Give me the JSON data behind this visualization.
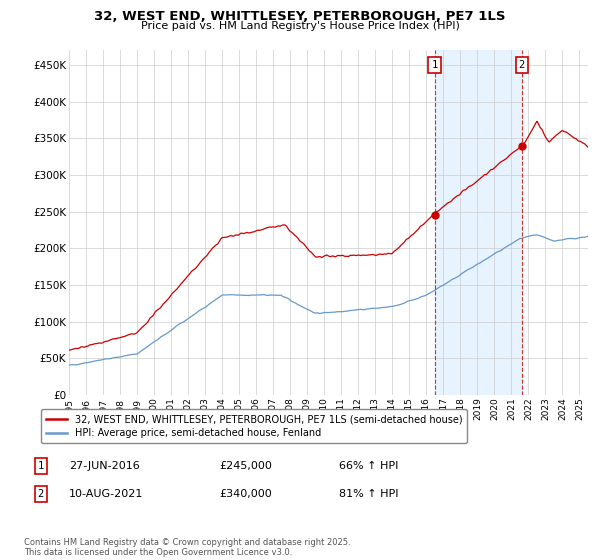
{
  "title_line1": "32, WEST END, WHITTLESEY, PETERBOROUGH, PE7 1LS",
  "title_line2": "Price paid vs. HM Land Registry's House Price Index (HPI)",
  "ylabel_ticks": [
    "£0",
    "£50K",
    "£100K",
    "£150K",
    "£200K",
    "£250K",
    "£300K",
    "£350K",
    "£400K",
    "£450K"
  ],
  "ytick_values": [
    0,
    50000,
    100000,
    150000,
    200000,
    250000,
    300000,
    350000,
    400000,
    450000
  ],
  "ylim": [
    0,
    470000
  ],
  "xlim_start": 1995.0,
  "xlim_end": 2025.5,
  "x_tick_years": [
    1995,
    1996,
    1997,
    1998,
    1999,
    2000,
    2001,
    2002,
    2003,
    2004,
    2005,
    2006,
    2007,
    2008,
    2009,
    2010,
    2011,
    2012,
    2013,
    2014,
    2015,
    2016,
    2017,
    2018,
    2019,
    2020,
    2021,
    2022,
    2023,
    2024,
    2025
  ],
  "sale1_x": 2016.49,
  "sale1_y": 245000,
  "sale2_x": 2021.61,
  "sale2_y": 340000,
  "shade_alpha": 0.12,
  "legend_line1": "32, WEST END, WHITTLESEY, PETERBOROUGH, PE7 1LS (semi-detached house)",
  "legend_line2": "HPI: Average price, semi-detached house, Fenland",
  "label1_date": "27-JUN-2016",
  "label1_price": "£245,000",
  "label1_pct": "66% ↑ HPI",
  "label2_date": "10-AUG-2021",
  "label2_price": "£340,000",
  "label2_pct": "81% ↑ HPI",
  "footnote": "Contains HM Land Registry data © Crown copyright and database right 2025.\nThis data is licensed under the Open Government Licence v3.0.",
  "red_color": "#cc0000",
  "blue_color": "#6699cc",
  "shade_color": "#ddeeff",
  "bg_color": "#ffffff",
  "grid_color": "#cccccc"
}
